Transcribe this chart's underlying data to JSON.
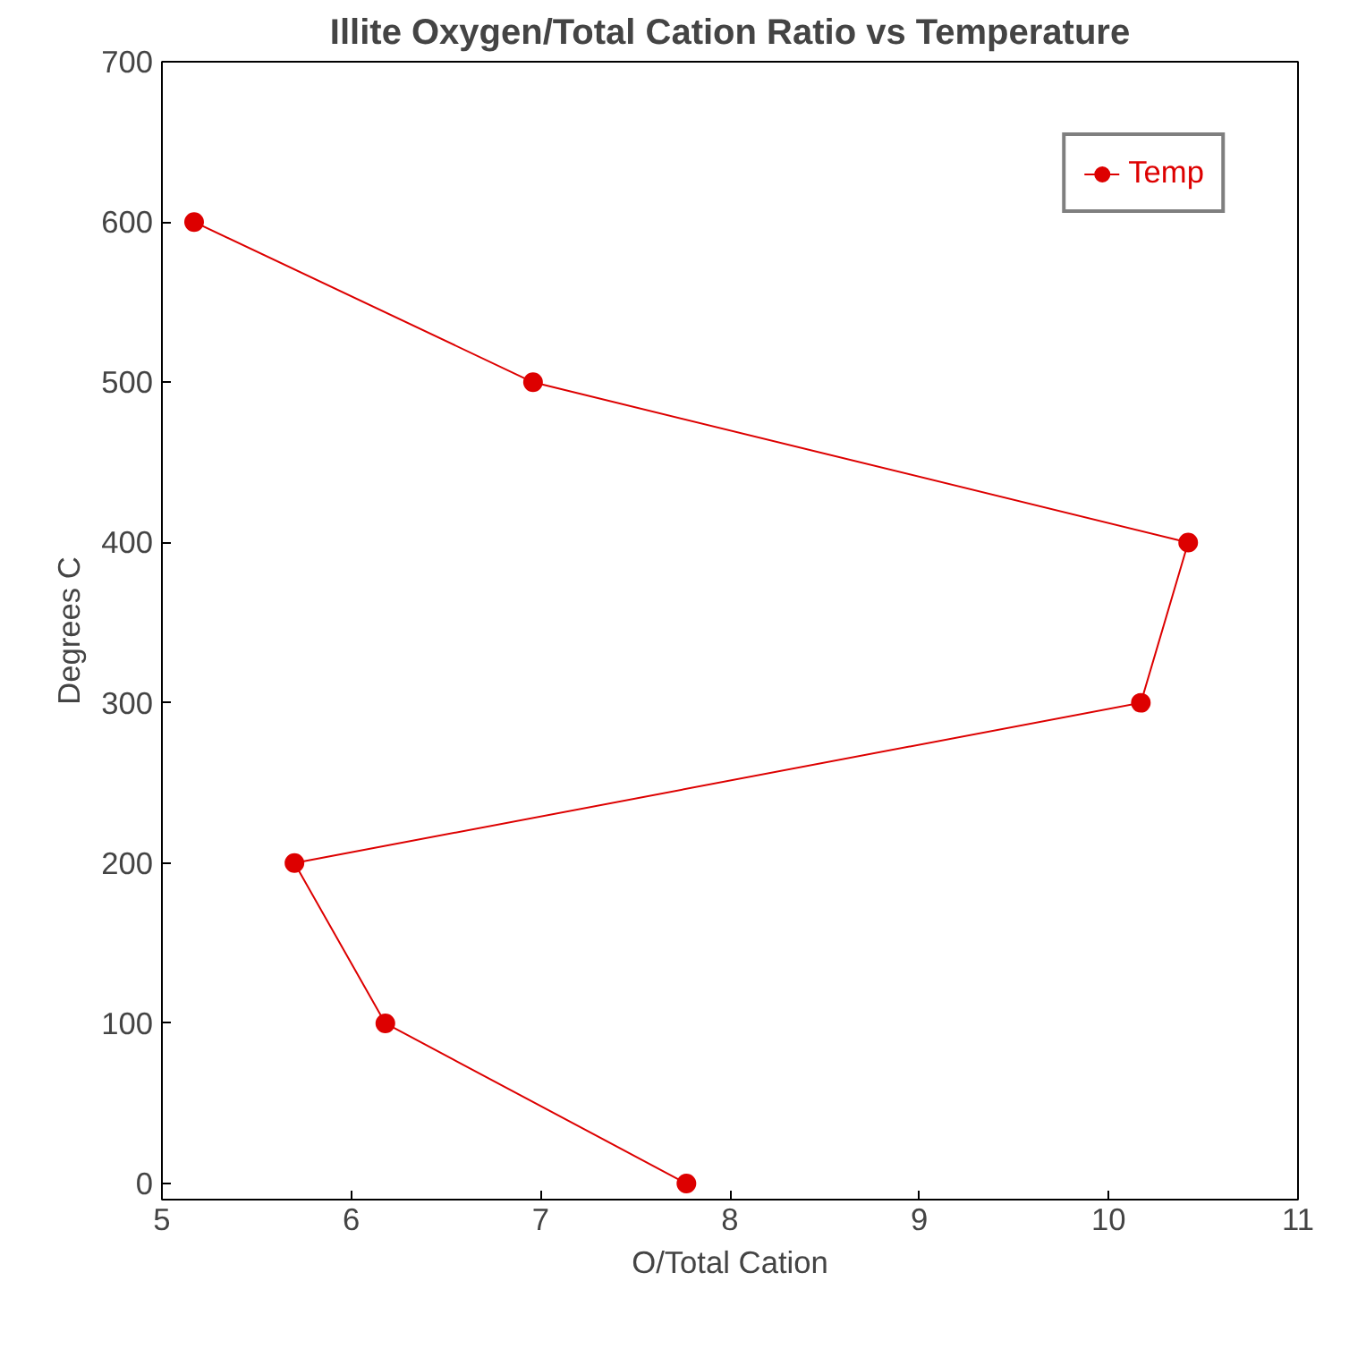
{
  "chart_data": {
    "type": "line",
    "title": "Illite Oxygen/Total Cation Ratio vs Temperature",
    "xlabel": "O/Total Cation",
    "ylabel": "Degrees C",
    "x": [
      5.17,
      6.96,
      10.42,
      10.17,
      5.7,
      6.18,
      7.77
    ],
    "series": [
      {
        "name": "Temp",
        "color": "#dd0000",
        "values": [
          600,
          500,
          400,
          300,
          200,
          100,
          0
        ]
      }
    ],
    "xlim": [
      5,
      11
    ],
    "xticks": [
      5,
      6,
      7,
      8,
      9,
      10,
      11
    ],
    "ylim": [
      -10,
      700
    ],
    "yticks": [
      0,
      100,
      200,
      300,
      400,
      500,
      600,
      700
    ],
    "grid": false,
    "legend": "top right",
    "marker": "circle",
    "line_style": "solid"
  }
}
